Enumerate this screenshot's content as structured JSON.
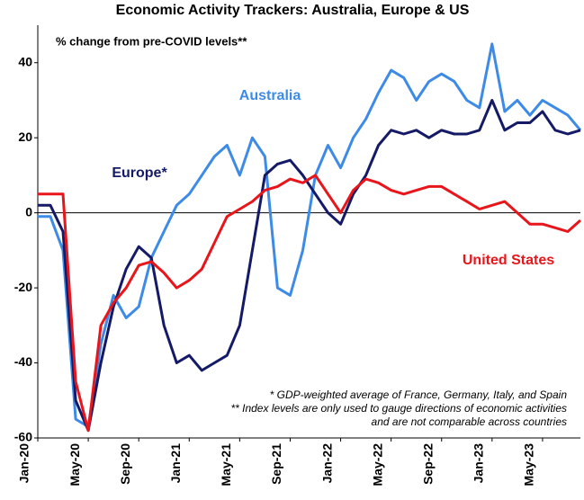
{
  "chart_data": {
    "type": "line",
    "title": "Economic Activity Trackers: Australia, Europe & US",
    "subtitle": "% change from pre-COVID levels**",
    "notes": [
      "* GDP-weighted average of France, Germany, Italy, and Spain",
      "** Index levels are only used to gauge directions of economic activities",
      "and are not comparable across countries"
    ],
    "categories": [
      "Jan-20",
      null,
      null,
      null,
      "May-20",
      null,
      null,
      null,
      "Sep-20",
      null,
      null,
      null,
      "Jan-21",
      null,
      null,
      null,
      "May-21",
      null,
      null,
      null,
      "Sep-21",
      null,
      null,
      null,
      "Jan-22",
      null,
      null,
      null,
      "May-22",
      null,
      null,
      null,
      "Sep-22",
      null,
      null,
      null,
      "Jan-23",
      null,
      null,
      null,
      "May-23",
      null,
      null,
      null
    ],
    "series": [
      {
        "name": "Australia",
        "color": "#3d8be6",
        "values": [
          -1,
          -1,
          -10,
          -55,
          -57,
          -35,
          -22,
          -28,
          -25,
          -12,
          -5,
          2,
          5,
          10,
          15,
          18,
          10,
          20,
          15,
          -20,
          -22,
          -10,
          10,
          18,
          12,
          20,
          25,
          32,
          38,
          36,
          30,
          35,
          37,
          35,
          30,
          28,
          45,
          27,
          30,
          26,
          30,
          28,
          26,
          22
        ]
      },
      {
        "name": "Europe*",
        "color": "#141a66",
        "values": [
          2,
          2,
          -5,
          -50,
          -58,
          -40,
          -25,
          -15,
          -9,
          -12,
          -30,
          -40,
          -38,
          -42,
          -40,
          -38,
          -30,
          -10,
          10,
          13,
          14,
          10,
          5,
          0,
          -3,
          5,
          10,
          18,
          22,
          21,
          22,
          20,
          22,
          21,
          21,
          22,
          30,
          22,
          24,
          24,
          27,
          22,
          21,
          22
        ]
      },
      {
        "name": "United States",
        "color": "#e8161b",
        "values": [
          5,
          5,
          5,
          -45,
          -58,
          -30,
          -24,
          -20,
          -14,
          -13,
          -16,
          -20,
          -18,
          -15,
          -8,
          -1,
          1,
          3,
          6,
          7,
          9,
          8,
          10,
          5,
          0,
          6,
          9,
          8,
          6,
          5,
          6,
          7,
          7,
          5,
          3,
          1,
          2,
          3,
          0,
          -3,
          -3,
          -4,
          -5,
          -2
        ]
      }
    ],
    "ylim": [
      -60,
      50
    ],
    "yticks": [
      -60,
      -40,
      -20,
      0,
      20,
      40
    ],
    "grid": false
  }
}
